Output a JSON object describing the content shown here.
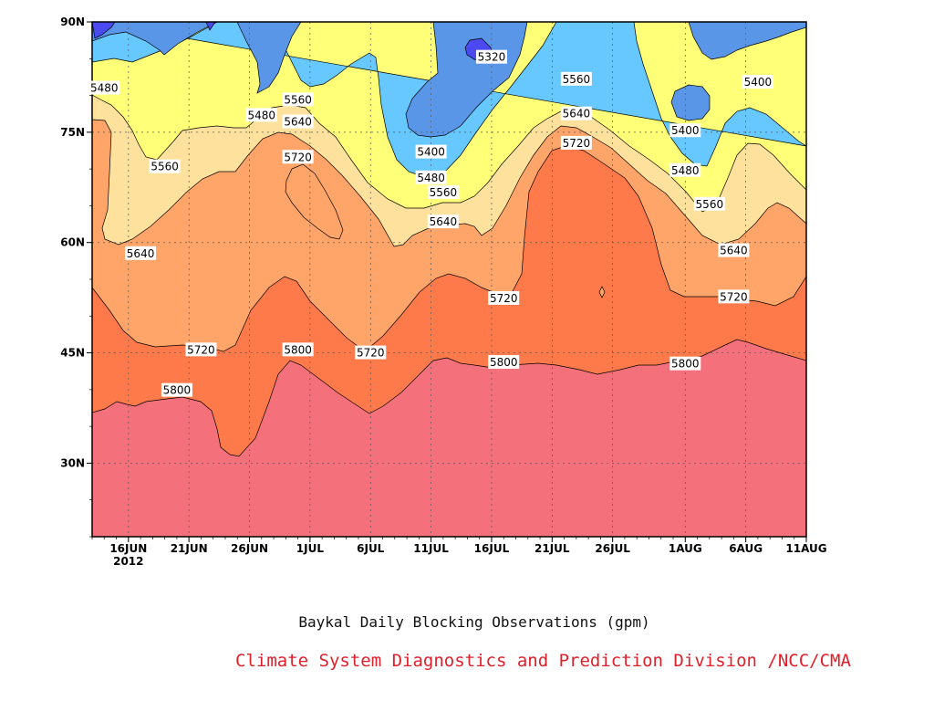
{
  "chart_data": {
    "type": "contour",
    "title": "Baykal Daily Blocking Observations (gpm)",
    "credit": "Climate System Diagnostics and Prediction Division /NCC/CMA",
    "x_ticks": [
      {
        "date": "2012-06-16",
        "label": "16JUN",
        "sublabel": "2012"
      },
      {
        "date": "2012-06-21",
        "label": "21JUN"
      },
      {
        "date": "2012-06-26",
        "label": "26JUN"
      },
      {
        "date": "2012-07-01",
        "label": "1JUL"
      },
      {
        "date": "2012-07-06",
        "label": "6JUL"
      },
      {
        "date": "2012-07-11",
        "label": "11JUL"
      },
      {
        "date": "2012-07-16",
        "label": "16JUL"
      },
      {
        "date": "2012-07-21",
        "label": "21JUL"
      },
      {
        "date": "2012-07-26",
        "label": "26JUL"
      },
      {
        "date": "2012-08-01",
        "label": "1AUG"
      },
      {
        "date": "2012-08-06",
        "label": "6AUG"
      },
      {
        "date": "2012-08-11",
        "label": "11AUG"
      }
    ],
    "y_ticks": [
      {
        "value": 30,
        "label": "30N"
      },
      {
        "value": 45,
        "label": "45N"
      },
      {
        "value": 60,
        "label": "60N"
      },
      {
        "value": 75,
        "label": "75N"
      },
      {
        "value": 90,
        "label": "90N"
      }
    ],
    "xlim": [
      "2012-06-13",
      "2012-08-11"
    ],
    "ylim": [
      20,
      90
    ],
    "grid": true,
    "levels": [
      5320,
      5400,
      5480,
      5560,
      5640,
      5720,
      5800
    ],
    "colors": [
      "#f4707a",
      "#ff7a4a",
      "#ffa56a",
      "#ffe19e",
      "#ffff78",
      "#66c8ff",
      "#5a96e8",
      "#4a4af0"
    ],
    "contour_labels": [
      {
        "text": "5480",
        "date": "2012-06-14",
        "lat": 81
      },
      {
        "text": "5560",
        "date": "2012-06-19",
        "lat": 70.3
      },
      {
        "text": "5640",
        "date": "2012-06-17",
        "lat": 58.5
      },
      {
        "text": "5720",
        "date": "2012-06-22",
        "lat": 45.4
      },
      {
        "text": "5800",
        "date": "2012-06-20",
        "lat": 39.9
      },
      {
        "text": "5480",
        "date": "2012-06-27",
        "lat": 77.3
      },
      {
        "text": "5560",
        "date": "2012-06-30",
        "lat": 79.4
      },
      {
        "text": "5640",
        "date": "2012-06-30",
        "lat": 76.4
      },
      {
        "text": "5720",
        "date": "2012-06-30",
        "lat": 71.6
      },
      {
        "text": "5800",
        "date": "2012-06-30",
        "lat": 45.4
      },
      {
        "text": "5720",
        "date": "2012-07-06",
        "lat": 45
      },
      {
        "text": "5400",
        "date": "2012-07-11",
        "lat": 72.3
      },
      {
        "text": "5480",
        "date": "2012-07-11",
        "lat": 68.8
      },
      {
        "text": "5560",
        "date": "2012-07-12",
        "lat": 66.8
      },
      {
        "text": "5640",
        "date": "2012-07-12",
        "lat": 62.8
      },
      {
        "text": "5320",
        "date": "2012-07-16",
        "lat": 85.2
      },
      {
        "text": "5720",
        "date": "2012-07-17",
        "lat": 52.4
      },
      {
        "text": "5800",
        "date": "2012-07-17",
        "lat": 43.7
      },
      {
        "text": "5560",
        "date": "2012-07-23",
        "lat": 82.2
      },
      {
        "text": "5640",
        "date": "2012-07-23",
        "lat": 77.5
      },
      {
        "text": "5720",
        "date": "2012-07-23",
        "lat": 73.5
      },
      {
        "text": "5400",
        "date": "2012-08-01",
        "lat": 75.2
      },
      {
        "text": "5480",
        "date": "2012-08-01",
        "lat": 69.8
      },
      {
        "text": "5560",
        "date": "2012-08-03",
        "lat": 65.2
      },
      {
        "text": "5640",
        "date": "2012-08-05",
        "lat": 58.9
      },
      {
        "text": "5720",
        "date": "2012-08-05",
        "lat": 52.6
      },
      {
        "text": "5800",
        "date": "2012-08-01",
        "lat": 43.5
      },
      {
        "text": "5400",
        "date": "2012-08-07",
        "lat": 81.8
      }
    ]
  }
}
